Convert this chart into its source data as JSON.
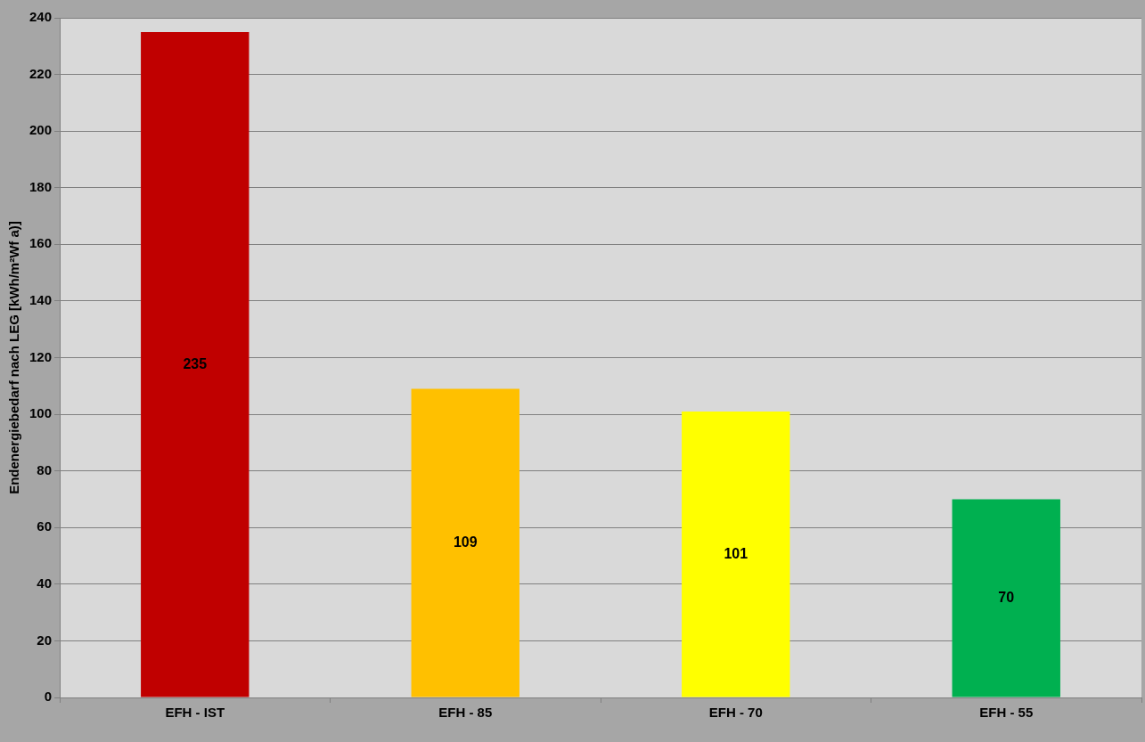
{
  "chart_data": {
    "type": "bar",
    "ylabel": "Endenergiebedarf nach LEG [kWh/m²Wf a)]",
    "categories": [
      "EFH - IST",
      "EFH - 85",
      "EFH - 70",
      "EFH - 55"
    ],
    "values": [
      235,
      109,
      101,
      70
    ],
    "colors": [
      "#c00000",
      "#ffc000",
      "#ffff00",
      "#00b050"
    ],
    "ylim": [
      0,
      240
    ],
    "yticks": [
      0,
      20,
      40,
      60,
      80,
      100,
      120,
      140,
      160,
      180,
      200,
      220,
      240
    ],
    "grid": "y",
    "data_labels": true
  }
}
